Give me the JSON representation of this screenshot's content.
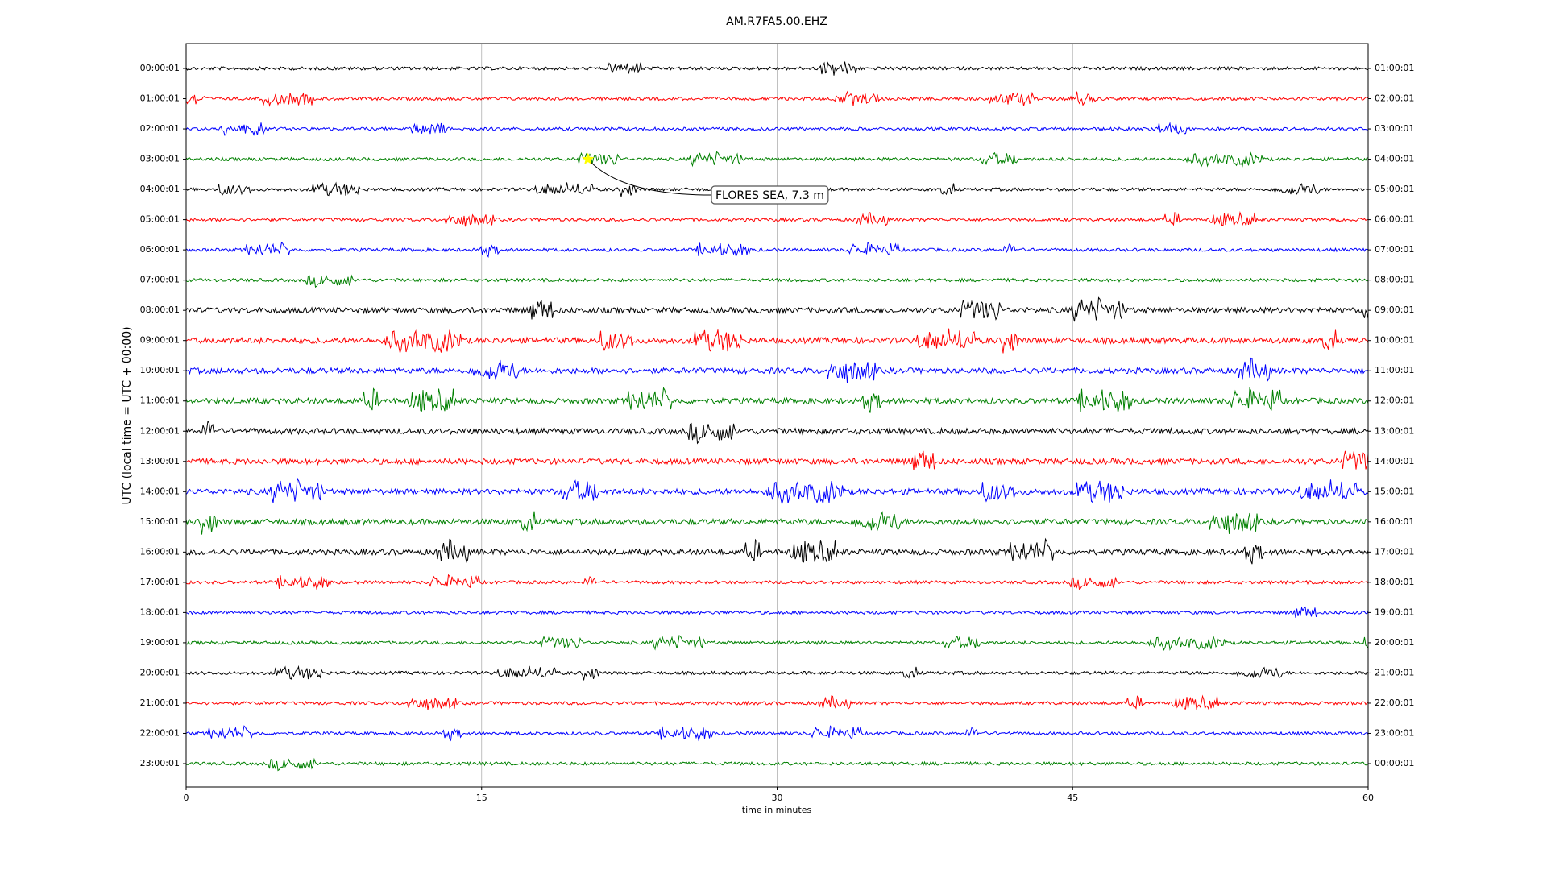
{
  "chart_data": {
    "type": "dayplot",
    "title": "AM.R7FA5.00.EHZ",
    "xlabel": "time in minutes",
    "ylabel": "UTC (local time = UTC + 00:00)",
    "xlim": [
      0,
      60
    ],
    "xticks": [
      0,
      15,
      30,
      45,
      60
    ],
    "grid": true,
    "categories": [
      "00:00:01",
      "01:00:01",
      "02:00:01",
      "03:00:01",
      "04:00:01",
      "05:00:01",
      "06:00:01",
      "07:00:01",
      "08:00:01",
      "09:00:01",
      "10:00:01",
      "11:00:01",
      "12:00:01",
      "13:00:01",
      "14:00:01",
      "15:00:01",
      "16:00:01",
      "17:00:01",
      "18:00:01",
      "19:00:01",
      "20:00:01",
      "21:00:01",
      "22:00:01",
      "23:00:01"
    ],
    "right_labels": [
      "01:00:01",
      "02:00:01",
      "03:00:01",
      "04:00:01",
      "05:00:01",
      "06:00:01",
      "07:00:01",
      "08:00:01",
      "09:00:01",
      "10:00:01",
      "11:00:01",
      "12:00:01",
      "13:00:01",
      "14:00:01",
      "15:00:01",
      "16:00:01",
      "17:00:01",
      "18:00:01",
      "19:00:01",
      "20:00:01",
      "21:00:01",
      "22:00:01",
      "23:00:01",
      "00:00:01"
    ],
    "colors": [
      "#000000",
      "#ff0000",
      "#0000ff",
      "#008000"
    ],
    "annotation": {
      "text": "FLORES SEA, 7.3 m",
      "x": 20.4,
      "row": 3,
      "marker_color": "#ffff00"
    }
  }
}
